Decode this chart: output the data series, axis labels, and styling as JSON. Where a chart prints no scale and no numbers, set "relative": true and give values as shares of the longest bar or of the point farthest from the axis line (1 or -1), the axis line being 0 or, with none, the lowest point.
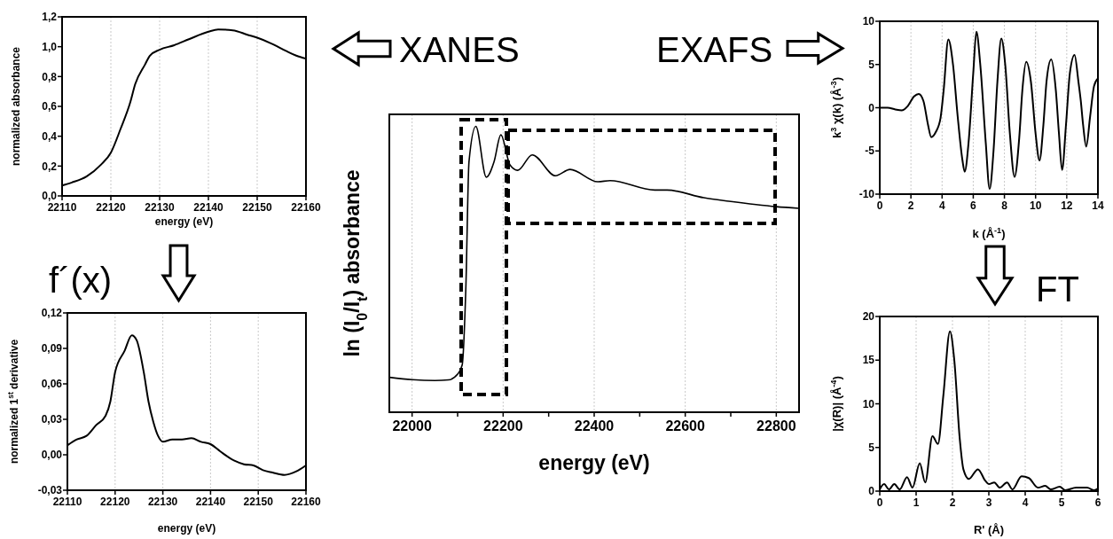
{
  "chart_data": [
    {
      "type": "line",
      "xlabel": "energy (eV)",
      "ylabel": "normalized absorbance",
      "xlim": [
        22110,
        22160
      ],
      "xticks": [
        22110,
        22120,
        22130,
        22140,
        22150,
        22160
      ],
      "ylim": [
        0,
        1.2
      ],
      "yticks": [
        {
          "value": 0,
          "label": "0,0"
        },
        {
          "value": 0.2,
          "label": "0,2"
        },
        {
          "value": 0.4,
          "label": "0,4"
        },
        {
          "value": 0.6,
          "label": "0,6"
        },
        {
          "value": 0.8,
          "label": "0,8"
        },
        {
          "value": 1,
          "label": "1,0"
        },
        {
          "value": 1.2,
          "label": "1,2"
        }
      ],
      "grid": "x",
      "marker": "none",
      "line_style": "solid",
      "series": [
        {
          "color": "#000000",
          "x": [
            22110,
            22112,
            22115,
            22118,
            22120,
            22122,
            22124,
            22125,
            22127,
            22128,
            22130,
            22133,
            22136,
            22140,
            22142,
            22145,
            22148,
            22150,
            22153,
            22156,
            22158,
            22160
          ],
          "values": [
            0.07,
            0.09,
            0.13,
            0.21,
            0.29,
            0.45,
            0.63,
            0.75,
            0.88,
            0.94,
            0.98,
            1.01,
            1.05,
            1.1,
            1.115,
            1.11,
            1.08,
            1.06,
            1.02,
            0.97,
            0.94,
            0.92
          ]
        }
      ]
    },
    {
      "type": "line",
      "xlabel": "energy (eV)",
      "ylabel": "ln (I$_{0}$/I$_{t}$) absorbance",
      "relative": true,
      "xlim": [
        21950,
        22850
      ],
      "xticks": [
        22000,
        {
          "value": 22100,
          "label": null
        },
        22200,
        {
          "value": 22300,
          "label": null
        },
        22400,
        {
          "value": 22500,
          "label": null
        },
        22600,
        {
          "value": 22700,
          "label": null
        },
        22800
      ],
      "grid": "x",
      "marker": "none",
      "line_style": "solid",
      "annotations": [
        "XANES",
        "EXAFS"
      ],
      "series": [
        {
          "color": "#000000",
          "x": [
            21950,
            22000,
            22050,
            22080,
            22100,
            22110,
            22118,
            22125,
            22140,
            22163,
            22180,
            22195,
            22215,
            22232,
            22264,
            22315,
            22347,
            22408,
            22435,
            22533,
            22560,
            22641,
            22696,
            22800,
            22850
          ],
          "values": [
            0.122,
            0.114,
            0.111,
            0.113,
            0.133,
            0.165,
            0.43,
            0.876,
            1,
            0.822,
            0.876,
            0.97,
            0.865,
            0.846,
            0.9,
            0.827,
            0.849,
            0.806,
            0.81,
            0.777,
            0.777,
            0.75,
            0.738,
            0.719,
            0.713
          ]
        }
      ]
    },
    {
      "type": "line",
      "xlabel": "k (Å$^{-1}$)",
      "ylabel": "k$^{3}$ χ(k) (Å$^{-3}$)",
      "xlim": [
        0,
        14
      ],
      "xticks": [
        0,
        2,
        4,
        6,
        8,
        10,
        12,
        14
      ],
      "ylim": [
        -10,
        10
      ],
      "yticks": [
        -10,
        -5,
        0,
        5,
        10
      ],
      "grid": "x",
      "marker": "none",
      "line_style": "solid",
      "series": [
        {
          "color": "#000000",
          "x": [
            0,
            0.5,
            1,
            1.4,
            1.8,
            2.2,
            2.5,
            2.8,
            3.1,
            3.3,
            3.6,
            3.9,
            4.1,
            4.4,
            4.7,
            5,
            5.3,
            5.45,
            5.7,
            6,
            6.2,
            6.45,
            6.8,
            7.05,
            7.3,
            7.55,
            7.8,
            8.05,
            8.35,
            8.65,
            8.95,
            9.15,
            9.4,
            9.7,
            10,
            10.25,
            10.5,
            10.7,
            11,
            11.3,
            11.5,
            11.7,
            11.95,
            12.2,
            12.5,
            12.75,
            12.9,
            13.05,
            13.25,
            13.5,
            13.75,
            14
          ],
          "values": [
            0,
            0,
            -0.2,
            -0.3,
            0.2,
            1.3,
            1.6,
            0.8,
            -2,
            -3.4,
            -2.8,
            -1.2,
            2,
            7.9,
            5,
            -1,
            -6,
            -7.4,
            -4,
            4,
            8.8,
            5,
            -4,
            -9.4,
            -5,
            3,
            8,
            5,
            -3,
            -8,
            -3.5,
            2,
            5.3,
            3,
            -3,
            -6.1,
            -2,
            3,
            5.6,
            2,
            -3,
            -7.2,
            -2,
            4,
            6.1,
            3,
            0.8,
            -2,
            -4.5,
            -1,
            2.5,
            3.4
          ]
        }
      ]
    },
    {
      "type": "line",
      "xlabel": "energy (eV)",
      "ylabel": "normalized 1$^{st}$ derivative",
      "xlim": [
        22110,
        22160
      ],
      "xticks": [
        22110,
        22120,
        22130,
        22140,
        22150,
        22160
      ],
      "ylim": [
        -0.03,
        0.12
      ],
      "yticks": [
        {
          "value": -0.03,
          "label": "-0,03"
        },
        {
          "value": 0,
          "label": "0,00"
        },
        {
          "value": 0.03,
          "label": "0,03"
        },
        {
          "value": 0.06,
          "label": "0,06"
        },
        {
          "value": 0.09,
          "label": "0,09"
        },
        {
          "value": 0.12,
          "label": "0,12"
        }
      ],
      "grid": "x",
      "marker": "none",
      "line_style": "solid",
      "annotations": [
        "f´(x)"
      ],
      "series": [
        {
          "color": "#000000",
          "x": [
            22110,
            22112,
            22114,
            22116,
            22118,
            22119,
            22120,
            22122,
            22123.5,
            22124.5,
            22126,
            22127,
            22128,
            22129,
            22130,
            22132,
            22134,
            22136,
            22138,
            22140,
            22142,
            22145,
            22147,
            22149,
            22151,
            22153,
            22155.5,
            22158,
            22160
          ],
          "values": [
            0.008,
            0.013,
            0.016,
            0.025,
            0.033,
            0.045,
            0.07,
            0.088,
            0.101,
            0.097,
            0.07,
            0.045,
            0.028,
            0.016,
            0.011,
            0.013,
            0.013,
            0.014,
            0.011,
            0.009,
            0.003,
            -0.005,
            -0.008,
            -0.009,
            -0.013,
            -0.015,
            -0.017,
            -0.014,
            -0.009
          ]
        }
      ]
    },
    {
      "type": "line",
      "xlabel": "R' (Å)",
      "ylabel": "|χ(R)| (Å$^{-4}$)",
      "xlim": [
        0,
        6
      ],
      "xticks": [
        0,
        1,
        2,
        3,
        4,
        5,
        6
      ],
      "ylim": [
        0,
        20
      ],
      "yticks": [
        0,
        5,
        10,
        15,
        20
      ],
      "grid": "x",
      "marker": "none",
      "line_style": "solid",
      "annotations": [
        "FT"
      ],
      "series": [
        {
          "color": "#000000",
          "x": [
            0,
            0.12,
            0.25,
            0.4,
            0.55,
            0.75,
            0.9,
            1.1,
            1.25,
            1.45,
            1.6,
            1.75,
            1.93,
            2.05,
            2.2,
            2.3,
            2.45,
            2.7,
            2.9,
            3,
            3.15,
            3.3,
            3.5,
            3.65,
            3.9,
            4.1,
            4.35,
            4.55,
            4.7,
            4.95,
            5.1,
            5.4,
            5.7,
            5.9,
            6
          ],
          "values": [
            0.2,
            0.8,
            0.2,
            0.8,
            0.2,
            1.6,
            0.4,
            3.2,
            1,
            6.3,
            5.4,
            11,
            18.3,
            15,
            6,
            2.5,
            1.4,
            2.5,
            1.2,
            0.8,
            1,
            0.4,
            1,
            0.2,
            1.7,
            1.5,
            0.4,
            0.6,
            0.2,
            0.5,
            0.1,
            0.4,
            0.4,
            0.1,
            0.3
          ]
        }
      ]
    }
  ]
}
